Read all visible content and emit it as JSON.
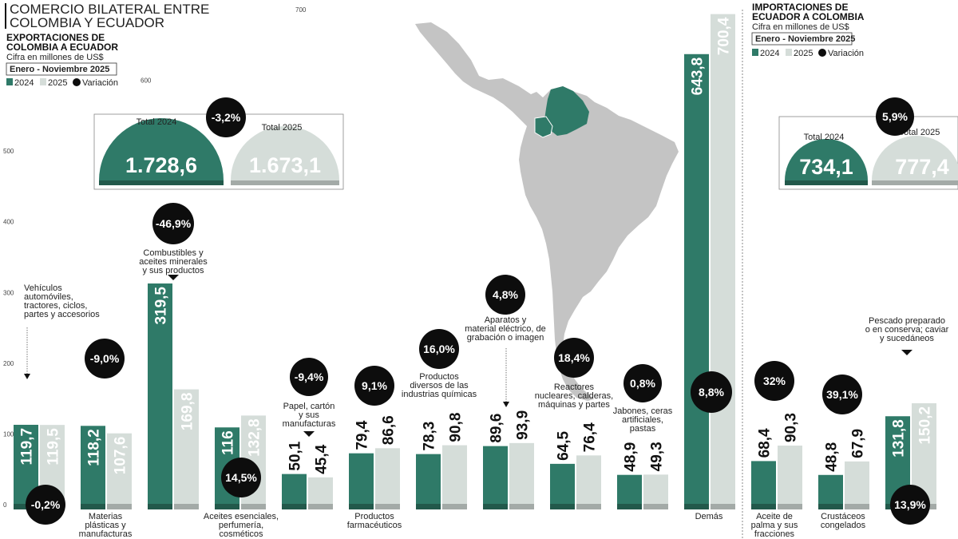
{
  "header": {
    "title_line1": "COMERCIO BILATERAL ENTRE",
    "title_line2": "COLOMBIA Y ECUADOR"
  },
  "left_panel": {
    "subtitle_line1": "EXPORTACIONES DE",
    "subtitle_line2": "COLOMBIA A ECUADOR",
    "unit": "Cifra en millones de US$",
    "period": "Enero - Noviembre 2025",
    "legend": {
      "y2024": "2024",
      "y2025": "2025",
      "variation": "Variación"
    },
    "total_2024_label": "Total 2024",
    "total_2024_value": "1.728,6",
    "total_2025_label": "Total 2025",
    "total_2025_value": "1.673,1",
    "total_variation": "-3,2%"
  },
  "right_panel": {
    "subtitle_line1": "IMPORTACIONES DE",
    "subtitle_line2": "ECUADOR A COLOMBIA",
    "unit": "Cifra en millones de US$",
    "period": "Enero - Noviembre 2025",
    "legend": {
      "y2024": "2024",
      "y2025": "2025",
      "variation": "Variación"
    },
    "total_2024_label": "Total 2024",
    "total_2024_value": "734,1",
    "total_2025_label": "Total 2025",
    "total_2025_value": "777,4",
    "total_variation": "5,9%"
  },
  "colors": {
    "bar_2024": "#2f7a68",
    "bar_2025": "#d5ddd9",
    "bar_2024_base": "#22594b",
    "bar_2025_base": "#a3aaa7",
    "badge": "#0d0d0d",
    "map_land": "#c4c4c4",
    "map_colombia": "#2f7a68"
  },
  "chart_data": {
    "type": "bar",
    "y_ticks": [
      "0",
      "100",
      "200",
      "300",
      "400",
      "500",
      "600",
      "700"
    ],
    "ylim": [
      0,
      700
    ],
    "series": [
      {
        "name": "2024",
        "values": [
          119.7,
          118.2,
          319.5,
          116,
          50.1,
          79.4,
          78.3,
          89.6,
          64.5,
          48.9,
          643.8,
          68.4,
          48.8,
          131.8
        ]
      },
      {
        "name": "2025",
        "values": [
          119.5,
          107.6,
          169.8,
          132.8,
          45.4,
          86.6,
          90.8,
          93.9,
          76.4,
          49.3,
          700.4,
          90.3,
          67.9,
          150.2
        ]
      }
    ],
    "labels_2024": [
      "119,7",
      "118,2",
      "319,5",
      "116",
      "50,1",
      "79,4",
      "78,3",
      "89,6",
      "64,5",
      "48,9",
      "643,8",
      "68,4",
      "48,8",
      "131,8"
    ],
    "labels_2025": [
      "119,5",
      "107,6",
      "169,8",
      "132,8",
      "45,4",
      "86,6",
      "90,8",
      "93,9",
      "76,4",
      "49,3",
      "700,4",
      "90,3",
      "67,9",
      "150,2"
    ],
    "variations": [
      "-0,2%",
      "-9,0%",
      "-46,9%",
      "14,5%",
      "-9,4%",
      "9,1%",
      "16,0%",
      "4,8%",
      "18,4%",
      "0,8%",
      "8,8%",
      "32%",
      "39,1%",
      "13,9%"
    ],
    "categories": [
      "Vehículos automóviles, tractores, ciclos, partes y accesorios",
      "Materias plásticas y manufacturas",
      "Combustibles y aceites minerales y sus productos",
      "Aceites esenciales, perfumería, cosméticos",
      "Papel, cartón y sus manufacturas",
      "Productos farmacéuticos",
      "Productos diversos de las industrias químicas",
      "Aparatos y material eléctrico, de grabación o imagen",
      "Reactores nucleares, calderas, máquinas y partes",
      "Jabones, ceras artificiales, pastas",
      "Demás",
      "Aceite de palma y sus fracciones",
      "Crustáceos congelados",
      "Pescado preparado o en conserva; caviar y sucedáneos"
    ],
    "category_label_lines": [
      [
        "Vehículos",
        "automóviles,",
        "tractores, ciclos,",
        "partes y accesorios"
      ],
      [
        "Materias",
        "plásticas y",
        "manufacturas"
      ],
      [
        "Combustibles y",
        "aceites minerales",
        "y sus productos"
      ],
      [
        "Aceites esenciales,",
        "perfumería,",
        "cosméticos"
      ],
      [
        "Papel, cartón",
        "y sus",
        "manufacturas"
      ],
      [
        "Productos",
        "farmacéuticos"
      ],
      [
        "Productos",
        "diversos de las",
        "industrias químicas"
      ],
      [
        "Aparatos y",
        "material eléctrico, de",
        "grabación o imagen"
      ],
      [
        "Reactores",
        "nucleares, calderas,",
        "máquinas y partes"
      ],
      [
        "Jabones, ceras",
        "artificiales,",
        "pastas"
      ],
      [
        "Demás"
      ],
      [
        "Aceite de",
        "palma y sus",
        "fracciones"
      ],
      [
        "Crustáceos",
        "congelados"
      ],
      [
        "Pescado preparado",
        "o en conserva; caviar",
        "y sucedáneos"
      ]
    ],
    "groups": [
      "Exportaciones de Colombia a Ecuador",
      "Importaciones de Ecuador a Colombia"
    ],
    "group_of_category": [
      0,
      0,
      0,
      0,
      0,
      0,
      0,
      0,
      0,
      0,
      0,
      1,
      1,
      1
    ],
    "grid": false,
    "legend": "top-left"
  }
}
